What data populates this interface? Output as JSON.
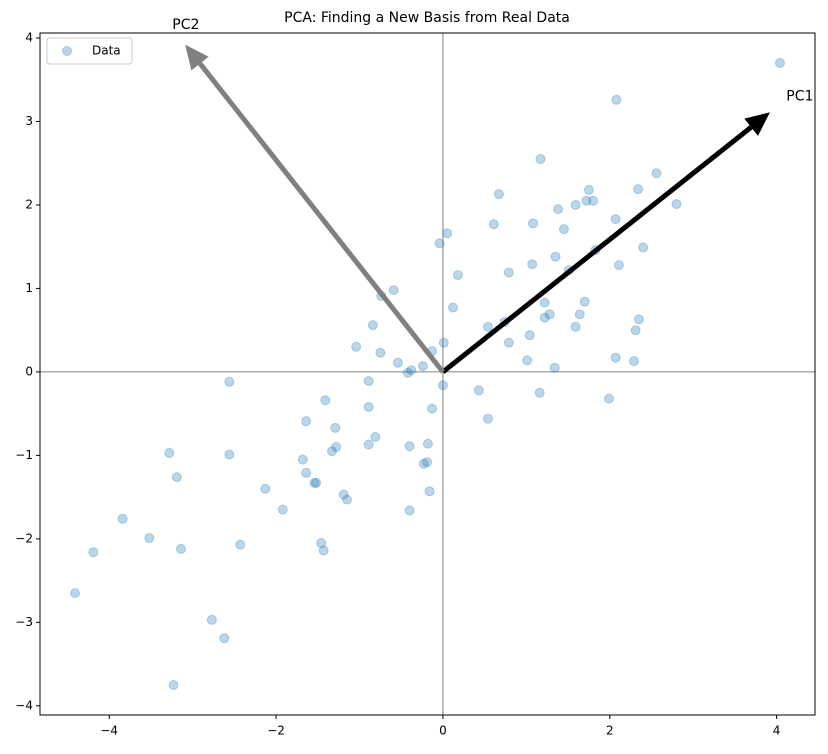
{
  "chart_data": {
    "type": "scatter",
    "title": "PCA: Finding a New Basis from Real Data",
    "xlim": [
      -4.83,
      4.46
    ],
    "ylim": [
      -4.11,
      4.06
    ],
    "xticks": [
      {
        "value": -4,
        "label": "−4"
      },
      {
        "value": -2,
        "label": "−2"
      },
      0,
      2,
      4
    ],
    "yticks": [
      {
        "value": -4,
        "label": "−4"
      },
      {
        "value": -3,
        "label": "−3"
      },
      {
        "value": -2,
        "label": "−2"
      },
      {
        "value": -1,
        "label": "−1"
      },
      0,
      1,
      2,
      3,
      4
    ],
    "hline": 0,
    "vline": 0,
    "legend": "upper left",
    "series": [
      {
        "name": "Data",
        "color": "#1f77b4",
        "alpha": 0.3,
        "x": [
          4.04,
          2.08,
          1.17,
          2.56,
          0.67,
          1.75,
          2.34,
          1.72,
          1.8,
          2.8,
          1.59,
          1.38,
          2.07,
          0.61,
          1.08,
          1.45,
          0.05,
          -0.04,
          2.4,
          1.83,
          1.35,
          1.07,
          2.11,
          1.51,
          0.79,
          0.18,
          -0.59,
          -0.74,
          0.12,
          1.7,
          1.22,
          1.28,
          1.64,
          1.22,
          2.35,
          -0.84,
          0.74,
          0.54,
          1.59,
          2.31,
          1.04,
          0.01,
          0.79,
          -1.04,
          -0.75,
          -0.13,
          1.01,
          -0.54,
          2.07,
          2.29,
          -0.24,
          1.34,
          -0.38,
          -0.42,
          -2.56,
          0,
          0.43,
          1.16,
          1.99,
          -1.41,
          -0.89,
          -0.89,
          -0.13,
          0.54,
          -1.64,
          -1.29,
          -0.81,
          -0.4,
          -0.18,
          -0.89,
          -1.28,
          -1.33,
          -3.28,
          -2.56,
          -1.68,
          -0.19,
          -0.23,
          -1.64,
          -3.19,
          -1.54,
          -1.52,
          -2.13,
          -0.16,
          -1.19,
          -1.15,
          -1.92,
          -0.4,
          -3.84,
          -3.52,
          -1.46,
          -2.43,
          -3.14,
          -1.43,
          -4.19,
          -4.41,
          -2.77,
          -2.62,
          -3.23
        ],
        "values": [
          3.7,
          3.26,
          2.55,
          2.38,
          2.13,
          2.18,
          2.19,
          2.05,
          2.05,
          2.01,
          2.0,
          1.95,
          1.83,
          1.77,
          1.78,
          1.71,
          1.66,
          1.54,
          1.49,
          1.46,
          1.38,
          1.29,
          1.28,
          1.22,
          1.19,
          1.16,
          0.98,
          0.91,
          0.77,
          0.84,
          0.83,
          0.69,
          0.69,
          0.65,
          0.63,
          0.56,
          0.6,
          0.54,
          0.54,
          0.5,
          0.44,
          0.35,
          0.35,
          0.3,
          0.23,
          0.25,
          0.14,
          0.11,
          0.17,
          0.13,
          0.07,
          0.05,
          0.02,
          -0.01,
          -0.12,
          -0.16,
          -0.22,
          -0.25,
          -0.32,
          -0.34,
          -0.11,
          -0.42,
          -0.44,
          -0.56,
          -0.59,
          -0.67,
          -0.78,
          -0.89,
          -0.86,
          -0.87,
          -0.9,
          -0.95,
          -0.97,
          -0.99,
          -1.05,
          -1.08,
          -1.1,
          -1.21,
          -1.26,
          -1.33,
          -1.33,
          -1.4,
          -1.43,
          -1.47,
          -1.53,
          -1.65,
          -1.66,
          -1.76,
          -1.99,
          -2.05,
          -2.07,
          -2.12,
          -2.14,
          -2.16,
          -2.65,
          -2.97,
          -3.19,
          -3.75
        ]
      }
    ],
    "arrows": [
      {
        "label": "PC1",
        "dx": 3.92,
        "dy": 3.11,
        "color": "#000000"
      },
      {
        "label": "PC2",
        "dx": -3.09,
        "dy": 3.92,
        "color": "#808080"
      }
    ]
  }
}
